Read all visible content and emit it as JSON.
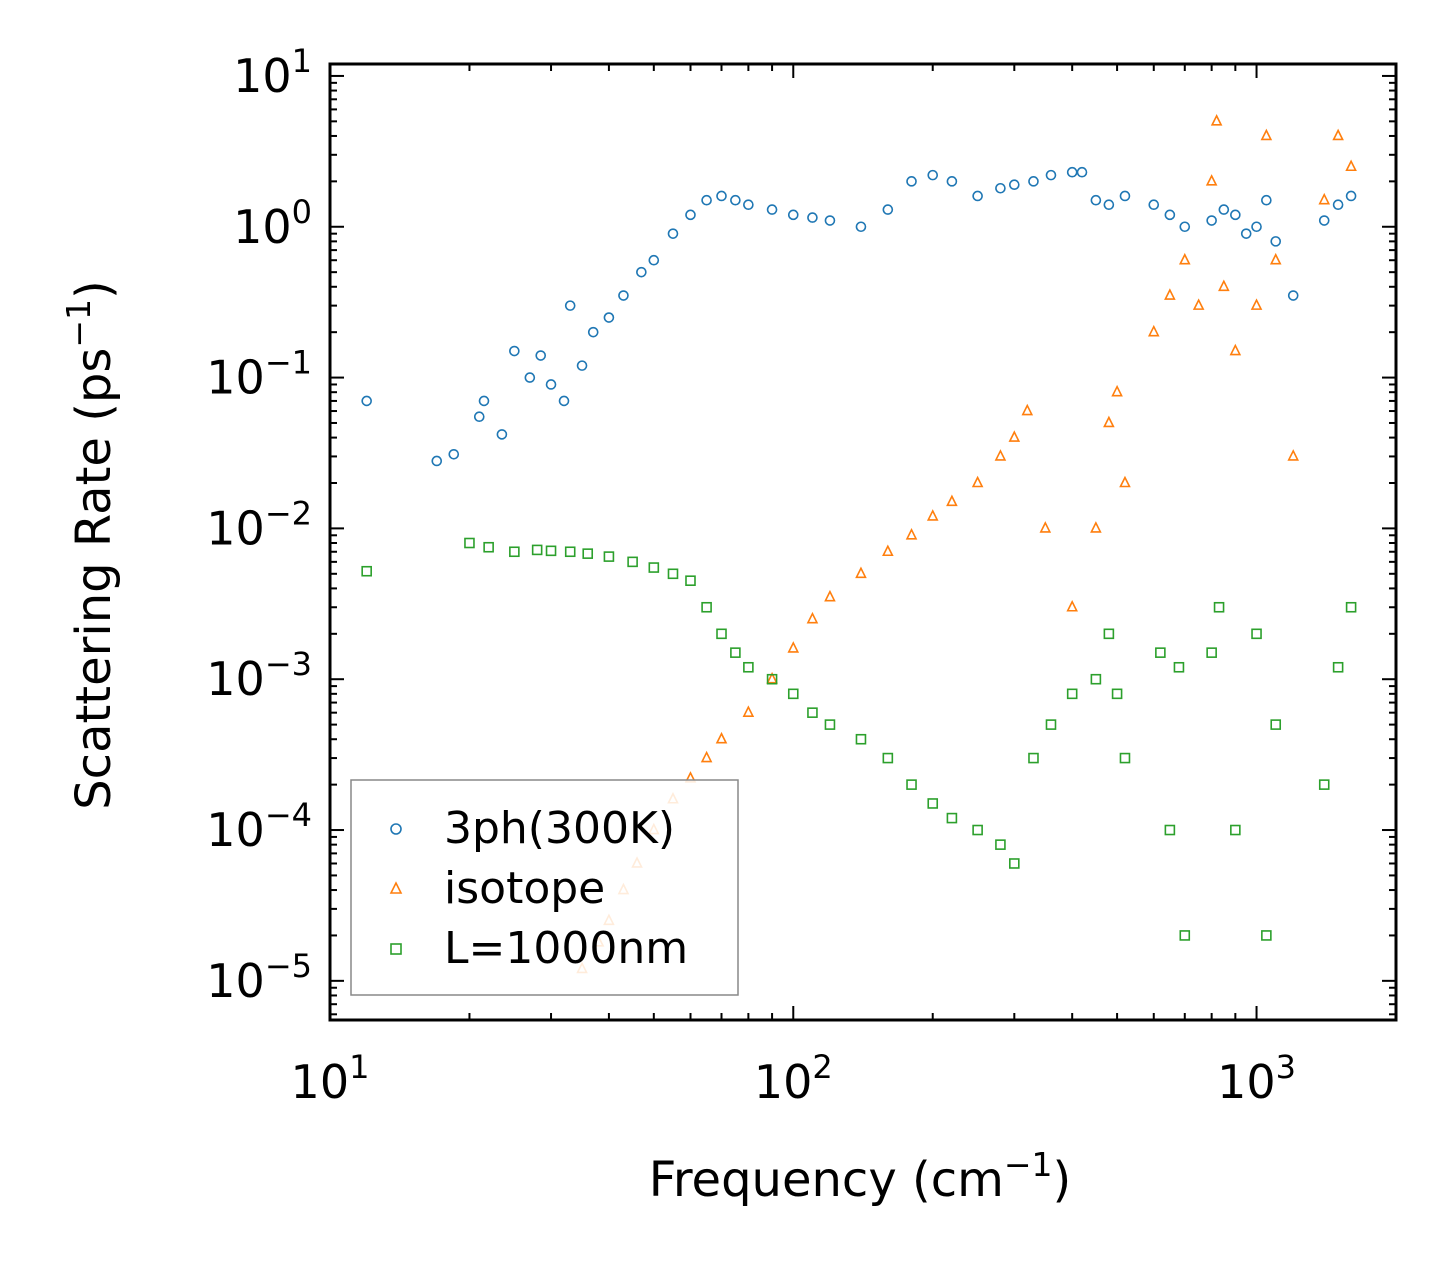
{
  "chart_data": {
    "type": "scatter",
    "title": "",
    "xlabel": "Frequency (cm",
    "xlabel_sup": "−1",
    "xlabel_close": ")",
    "ylabel": "Scattering Rate (ps",
    "ylabel_sup": "−1",
    "ylabel_close": ")",
    "xscale": "log",
    "yscale": "log",
    "xlim": [
      10,
      2000
    ],
    "ylim": [
      5.5e-06,
      12
    ],
    "x_ticks": [
      {
        "value": 10,
        "base": "10",
        "exp": "1"
      },
      {
        "value": 100,
        "base": "10",
        "exp": "2"
      },
      {
        "value": 1000,
        "base": "10",
        "exp": "3"
      }
    ],
    "y_ticks": [
      {
        "value": 10,
        "base": "10",
        "exp": "1"
      },
      {
        "value": 1,
        "base": "10",
        "exp": "0"
      },
      {
        "value": 0.1,
        "base": "10",
        "exp": "−1"
      },
      {
        "value": 0.01,
        "base": "10",
        "exp": "−2"
      },
      {
        "value": 0.001,
        "base": "10",
        "exp": "−3"
      },
      {
        "value": 0.0001,
        "base": "10",
        "exp": "−4"
      },
      {
        "value": 1e-05,
        "base": "10",
        "exp": "−5"
      }
    ],
    "legend_position": "bottom-left",
    "series": [
      {
        "name": "3ph(300K)",
        "marker": "circle",
        "color": "#1f77b4",
        "x": [
          12,
          17,
          18.5,
          21,
          21.5,
          23.5,
          25,
          27,
          28.5,
          30,
          32,
          33,
          35,
          37,
          40,
          43,
          47,
          50,
          55,
          60,
          65,
          70,
          75,
          80,
          90,
          100,
          110,
          120,
          140,
          160,
          180,
          200,
          220,
          250,
          280,
          300,
          330,
          360,
          400,
          420,
          450,
          480,
          520,
          600,
          650,
          700,
          800,
          850,
          900,
          950,
          1000,
          1050,
          1100,
          1200,
          1400,
          1500,
          1600
        ],
        "y": [
          0.07,
          0.028,
          0.031,
          0.055,
          0.07,
          0.042,
          0.15,
          0.1,
          0.14,
          0.09,
          0.07,
          0.3,
          0.12,
          0.2,
          0.25,
          0.35,
          0.5,
          0.6,
          0.9,
          1.2,
          1.5,
          1.6,
          1.5,
          1.4,
          1.3,
          1.2,
          1.15,
          1.1,
          1.0,
          1.3,
          2.0,
          2.2,
          2.0,
          1.6,
          1.8,
          1.9,
          2.0,
          2.2,
          2.3,
          2.3,
          1.5,
          1.4,
          1.6,
          1.4,
          1.2,
          1.0,
          1.1,
          1.3,
          1.2,
          0.9,
          1.0,
          1.5,
          0.8,
          0.35,
          1.1,
          1.4,
          1.6
        ]
      },
      {
        "name": "isotope",
        "marker": "triangle",
        "color": "#ff7f0e",
        "x": [
          35,
          38,
          40,
          43,
          46,
          50,
          55,
          60,
          65,
          70,
          80,
          90,
          100,
          110,
          120,
          140,
          160,
          180,
          200,
          220,
          250,
          280,
          300,
          320,
          350,
          400,
          450,
          480,
          500,
          520,
          600,
          650,
          700,
          750,
          800,
          820,
          850,
          900,
          1000,
          1050,
          1100,
          1200,
          1400,
          1500,
          1600
        ],
        "y": [
          1.2e-05,
          1.8e-05,
          2.5e-05,
          4e-05,
          6e-05,
          0.0001,
          0.00016,
          0.00022,
          0.0003,
          0.0004,
          0.0006,
          0.001,
          0.0016,
          0.0025,
          0.0035,
          0.005,
          0.007,
          0.009,
          0.012,
          0.015,
          0.02,
          0.03,
          0.04,
          0.06,
          0.01,
          0.003,
          0.01,
          0.05,
          0.08,
          0.02,
          0.2,
          0.35,
          0.6,
          0.3,
          2.0,
          5.0,
          0.4,
          0.15,
          0.3,
          4.0,
          0.6,
          0.03,
          1.5,
          4.0,
          2.5
        ]
      },
      {
        "name": "L=1000nm",
        "marker": "square",
        "color": "#2ca02c",
        "x": [
          12,
          20,
          22,
          25,
          28,
          30,
          33,
          36,
          40,
          45,
          50,
          55,
          60,
          65,
          70,
          75,
          80,
          90,
          100,
          110,
          120,
          140,
          160,
          180,
          200,
          220,
          250,
          280,
          300,
          330,
          360,
          400,
          450,
          480,
          500,
          520,
          620,
          650,
          680,
          700,
          800,
          830,
          900,
          1000,
          1050,
          1100,
          1400,
          1500,
          1600
        ],
        "y": [
          0.0052,
          0.008,
          0.0075,
          0.007,
          0.0072,
          0.0071,
          0.007,
          0.0068,
          0.0065,
          0.006,
          0.0055,
          0.005,
          0.0045,
          0.003,
          0.002,
          0.0015,
          0.0012,
          0.001,
          0.0008,
          0.0006,
          0.0005,
          0.0004,
          0.0003,
          0.0002,
          0.00015,
          0.00012,
          0.0001,
          8e-05,
          6e-05,
          0.0003,
          0.0005,
          0.0008,
          0.001,
          0.002,
          0.0008,
          0.0003,
          0.0015,
          0.0001,
          0.0012,
          2e-05,
          0.0015,
          0.003,
          0.0001,
          0.002,
          2e-05,
          0.0005,
          0.0002,
          0.0012,
          0.003
        ]
      }
    ]
  }
}
